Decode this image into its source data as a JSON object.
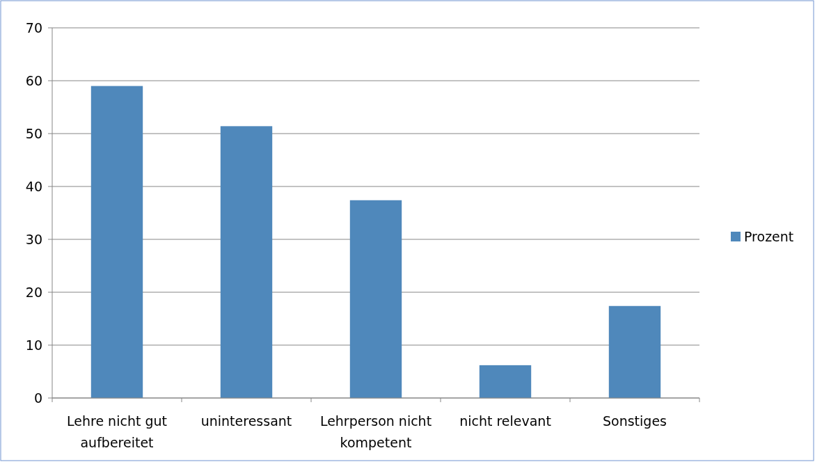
{
  "chart_data": {
    "type": "bar",
    "categories": [
      "Lehre nicht gut aufbereitet",
      "uninteressant",
      "Lehrperson nicht kompetent",
      "nicht relevant",
      "Sonstiges"
    ],
    "series": [
      {
        "name": "Prozent",
        "color": "#4f88bb",
        "values": [
          59,
          51.4,
          37.4,
          6.2,
          17.4
        ]
      }
    ],
    "ylim": [
      0,
      70
    ],
    "yticks": [
      0,
      10,
      20,
      30,
      40,
      50,
      60,
      70
    ],
    "grid": "y",
    "legend": "right"
  }
}
